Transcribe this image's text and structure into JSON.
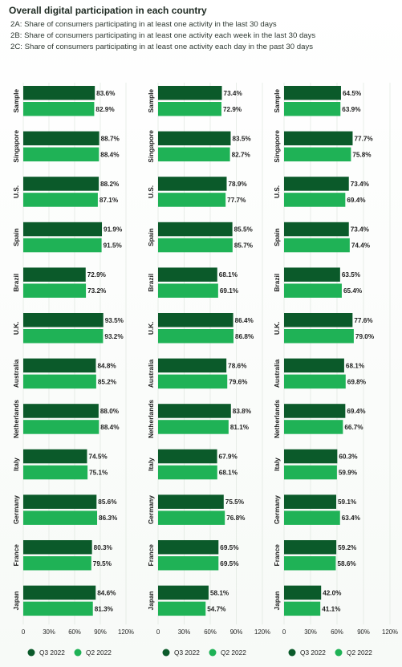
{
  "header": {
    "title": "Overall digital participation in each country",
    "subtitles": [
      "2A: Share of consumers participating in at least one activity in the last 30 days",
      "2B: Share of consumers participating in at least one activity each week in the last 30 days",
      "2C: Share of consumers participating in at least one activity each day in the past 30 days"
    ]
  },
  "colors": {
    "q3": "#0b5a2a",
    "q2": "#1fb256",
    "grid": "#dfe5df"
  },
  "chart_data": [
    {
      "type": "bar",
      "orientation": "horizontal",
      "categories": [
        "Sample",
        "Singapore",
        "U.S.",
        "Spain",
        "Brazil",
        "U.K.",
        "Australia",
        "Netherlands",
        "Italy",
        "Germany",
        "France",
        "Japan"
      ],
      "series": [
        {
          "name": "Q3 2022",
          "values": [
            83.6,
            88.7,
            88.2,
            91.9,
            72.9,
            93.5,
            84.8,
            88.0,
            74.5,
            85.6,
            80.3,
            84.6
          ]
        },
        {
          "name": "Q2 2022",
          "values": [
            82.9,
            88.4,
            87.1,
            91.5,
            73.2,
            93.2,
            85.2,
            88.4,
            75.1,
            86.3,
            79.5,
            81.3
          ]
        }
      ],
      "xlim": [
        0,
        120
      ],
      "ticks": [
        "0",
        "30%",
        "60%",
        "90%",
        "120%"
      ],
      "value_labels": {
        "Q3 2022": [
          "83.6%",
          "88.7%",
          "88.2%",
          "91.9%",
          "72.9%",
          "93.5%",
          "84.8%",
          "88.0%",
          "74.5%",
          "85.6%",
          "80.3%",
          "84.6%"
        ],
        "Q2 2022": [
          "82.9%",
          "88.4%",
          "87.1%",
          "91.5%",
          "73.2%",
          "93.2%",
          "85.2%",
          "88.4%",
          "75.1%",
          "86.3%",
          "79.5%",
          "81.3%"
        ]
      },
      "legend": [
        "Q3 2022",
        "Q2 2022"
      ],
      "legend_position": "bottom"
    },
    {
      "type": "bar",
      "orientation": "horizontal",
      "categories": [
        "Sample",
        "Singapore",
        "U.S.",
        "Spain",
        "Brazil",
        "U.K.",
        "Australia",
        "Netherlands",
        "Italy",
        "Germany",
        "France",
        "Japan"
      ],
      "series": [
        {
          "name": "Q3 2022",
          "values": [
            73.4,
            83.5,
            78.9,
            85.5,
            68.1,
            86.4,
            78.6,
            83.8,
            67.9,
            75.5,
            69.5,
            58.1
          ]
        },
        {
          "name": "Q2 2022",
          "values": [
            72.9,
            82.7,
            77.7,
            85.7,
            69.1,
            86.8,
            79.6,
            81.1,
            68.1,
            76.8,
            69.5,
            54.7
          ]
        }
      ],
      "xlim": [
        0,
        120
      ],
      "ticks": [
        "0",
        "30%",
        "60%",
        "90%",
        "120%"
      ],
      "value_labels": {
        "Q3 2022": [
          "73.4%",
          "83.5%",
          "78.9%",
          "85.5%",
          "68.1%",
          "86.4%",
          "78.6%",
          "83.8%",
          "67.9%",
          "75.5%",
          "69.5%",
          "58.1%"
        ],
        "Q2 2022": [
          "72.9%",
          "82.7%",
          "77.7%",
          "85.7%",
          "69.1%",
          "86.8%",
          "79.6%",
          "81.1%",
          "68.1%",
          "76.8%",
          "69.5%",
          "54.7%"
        ]
      },
      "legend": [
        "Q3 2022",
        "Q2 2022"
      ],
      "legend_position": "bottom"
    },
    {
      "type": "bar",
      "orientation": "horizontal",
      "categories": [
        "Sample",
        "Singapore",
        "U.S.",
        "Spain",
        "Brazil",
        "U.K.",
        "Australia",
        "Netherlands",
        "Italy",
        "Germany",
        "France",
        "Japan"
      ],
      "series": [
        {
          "name": "Q3 2022",
          "values": [
            64.5,
            77.7,
            73.4,
            73.4,
            63.5,
            77.6,
            68.1,
            69.4,
            60.3,
            59.1,
            59.2,
            42.0
          ]
        },
        {
          "name": "Q2 2022",
          "values": [
            63.9,
            75.8,
            69.4,
            74.4,
            65.4,
            79.0,
            69.8,
            66.7,
            59.9,
            63.4,
            58.6,
            41.1
          ]
        }
      ],
      "xlim": [
        0,
        120
      ],
      "ticks": [
        "0",
        "30%",
        "60%",
        "90%",
        "120%"
      ],
      "value_labels": {
        "Q3 2022": [
          "64.5%",
          "77.7%",
          "73.4%",
          "73.4%",
          "63.5%",
          "77.6%",
          "68.1%",
          "69.4%",
          "60.3%",
          "59.1%",
          "59.2%",
          "42.0%"
        ],
        "Q2 2022": [
          "63.9%",
          "75.8%",
          "69.4%",
          "74.4%",
          "65.4%",
          "79.0%",
          "69.8%",
          "66.7%",
          "59.9%",
          "63.4%",
          "58.6%",
          "41.1%"
        ]
      },
      "legend": [
        "Q3 2022",
        "Q2 2022"
      ],
      "legend_position": "bottom"
    }
  ]
}
